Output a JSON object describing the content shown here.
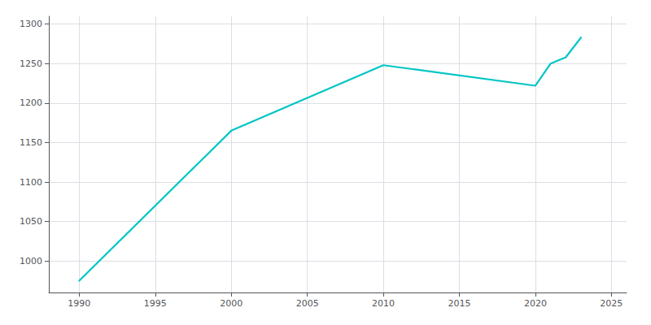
{
  "chart_data": {
    "type": "line",
    "x": [
      1990,
      2000,
      2010,
      2020,
      2021,
      2022,
      2023
    ],
    "values": [
      975,
      1165,
      1248,
      1222,
      1250,
      1258,
      1283
    ],
    "color": "#00C5C5",
    "xlim": [
      1988,
      2026
    ],
    "ylim": [
      960,
      1310
    ],
    "xticks": [
      1990,
      1995,
      2000,
      2005,
      2010,
      2015,
      2020,
      2025
    ],
    "yticks": [
      1000,
      1050,
      1100,
      1150,
      1200,
      1250,
      1300
    ],
    "grid": true
  }
}
